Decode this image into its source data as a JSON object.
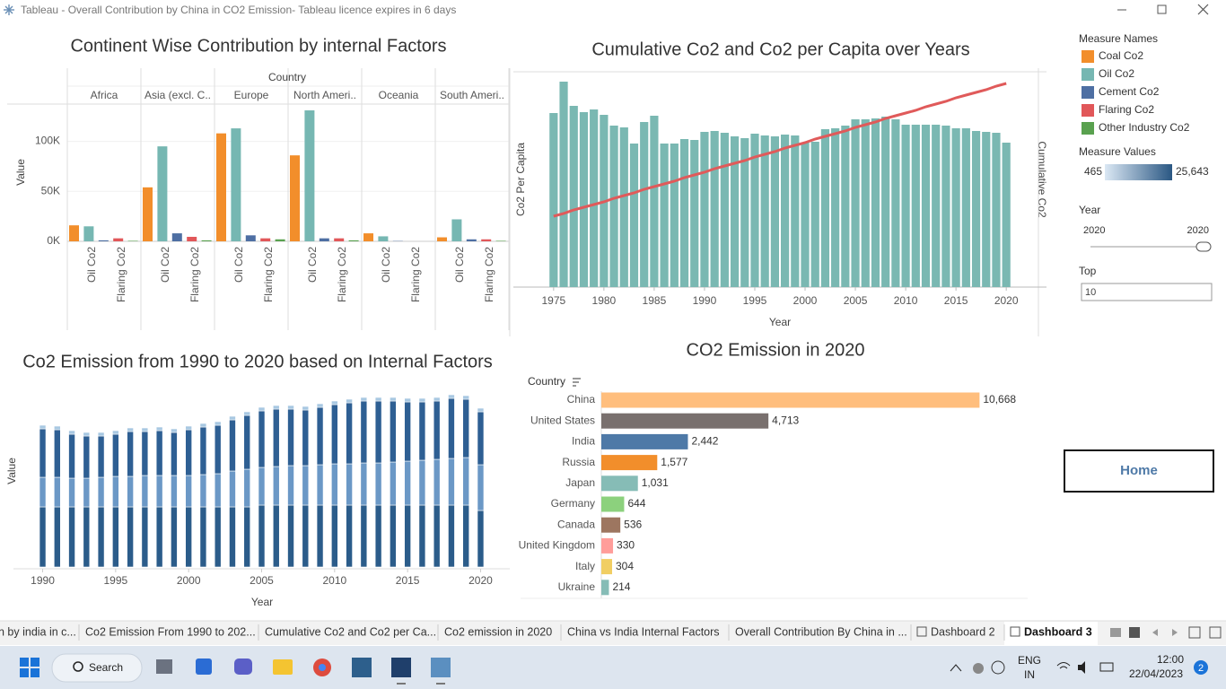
{
  "window": {
    "title": "Tableau - Overall Contribution by China in CO2 Emission- Tableau licence expires in 6 days"
  },
  "chart_data": [
    {
      "type": "grouped",
      "title": "Continent Wise Contribution by internal Factors",
      "column_header": "Country",
      "ylabel": "Value",
      "categories": [
        "Africa",
        "Asia (excl. C..",
        "Europe",
        "North Ameri..",
        "Oceania",
        "South Ameri.."
      ],
      "measure_labels": [
        null,
        "Oil Co2",
        null,
        "Flaring Co2",
        null
      ],
      "legend_title": "Measure Names",
      "series": [
        {
          "name": "Coal Co2",
          "color": "#f28e2b",
          "values": [
            16000,
            54000,
            108000,
            86000,
            8000,
            4000
          ]
        },
        {
          "name": "Oil Co2",
          "color": "#76b7b2",
          "values": [
            15000,
            95000,
            113000,
            131000,
            5000,
            22000
          ]
        },
        {
          "name": "Cement Co2",
          "color": "#4e6fa3",
          "values": [
            1000,
            8000,
            6000,
            3000,
            300,
            2000
          ]
        },
        {
          "name": "Flaring Co2",
          "color": "#e15759",
          "values": [
            3000,
            4500,
            3000,
            3000,
            0,
            2000
          ]
        },
        {
          "name": "Other Industry Co2",
          "color": "#59a14f",
          "values": [
            500,
            1000,
            2000,
            1000,
            0,
            500
          ]
        }
      ],
      "ylim": [
        0,
        140000
      ],
      "yticks": [
        {
          "value": 0,
          "label": "0K"
        },
        {
          "value": 50000,
          "label": "50K"
        },
        {
          "value": 100000,
          "label": "100K"
        }
      ],
      "grid": true
    },
    {
      "type": "combo",
      "title": "Cumulative Co2 and Co2 per Capita over Years",
      "xlabel": "Year",
      "ylabel": "Co2 Per Capita",
      "y2label": "Cumulative Co2",
      "x": [
        1975,
        1976,
        1977,
        1978,
        1979,
        1980,
        1981,
        1982,
        1983,
        1984,
        1985,
        1986,
        1987,
        1988,
        1989,
        1990,
        1991,
        1992,
        1993,
        1994,
        1995,
        1996,
        1997,
        1998,
        1999,
        2000,
        2001,
        2002,
        2003,
        2004,
        2005,
        2006,
        2007,
        2008,
        2009,
        2010,
        2011,
        2012,
        2013,
        2014,
        2015,
        2016,
        2017,
        2018,
        2019,
        2020
      ],
      "xlim": [
        1971,
        2024
      ],
      "xticks": [
        1975,
        1980,
        1985,
        1990,
        1995,
        2000,
        2005,
        2010,
        2015,
        2020
      ],
      "ylim": [
        0,
        240
      ],
      "y2lim": [
        0,
        240
      ],
      "series": [
        {
          "kind": "bar",
          "color": "#7ab8b2",
          "values": [
            194,
            229,
            202,
            195,
            198,
            192,
            180,
            178,
            160,
            184,
            191,
            160,
            160,
            165,
            164,
            173,
            174,
            172,
            168,
            166,
            171,
            169,
            168,
            170,
            169,
            161,
            162,
            176,
            177,
            180,
            187,
            187,
            188,
            190,
            187,
            181,
            181,
            181,
            181,
            180,
            177,
            177,
            174,
            173,
            172,
            161
          ]
        },
        {
          "kind": "line",
          "axis": "y2",
          "color": "#e05a5a",
          "values": [
            79,
            82,
            86,
            89,
            92,
            95,
            99,
            102,
            105,
            109,
            112,
            115,
            118,
            122,
            125,
            128,
            132,
            135,
            138,
            141,
            145,
            148,
            151,
            155,
            158,
            161,
            165,
            168,
            171,
            174,
            178,
            181,
            184,
            188,
            191,
            194,
            197,
            201,
            204,
            207,
            211,
            214,
            217,
            220,
            224,
            227
          ]
        }
      ]
    },
    {
      "type": "stacked",
      "title": "Co2 Emission from 1990 to 2020 based on Internal Factors",
      "xlabel": "Year",
      "ylabel": "Value",
      "x": [
        1990,
        1991,
        1992,
        1993,
        1994,
        1995,
        1996,
        1997,
        1998,
        1999,
        2000,
        2001,
        2002,
        2003,
        2004,
        2005,
        2006,
        2007,
        2008,
        2009,
        2010,
        2011,
        2012,
        2013,
        2014,
        2015,
        2016,
        2017,
        2018,
        2019,
        2020
      ],
      "xlim": [
        1988,
        2022
      ],
      "xticks": [
        1990,
        1995,
        2000,
        2005,
        2010,
        2015,
        2020
      ],
      "ylim": [
        0,
        212
      ],
      "series": [
        {
          "color": "#2b5c8a",
          "values": [
            67,
            67,
            67,
            67,
            67,
            67,
            67,
            67,
            67,
            67,
            67,
            67,
            67,
            67,
            67,
            69,
            69,
            69,
            69,
            69,
            69,
            69,
            69,
            69,
            69,
            69,
            69,
            69,
            69,
            69,
            63
          ]
        },
        {
          "color": "#6b98c6",
          "values": [
            33,
            33,
            32,
            32,
            33,
            34,
            34,
            35,
            35,
            35,
            35,
            36,
            37,
            40,
            42,
            42,
            43,
            44,
            44,
            45,
            46,
            46,
            47,
            47,
            48,
            49,
            50,
            51,
            52,
            53,
            51
          ]
        },
        {
          "color": "#2e5f93",
          "values": [
            54,
            53,
            49,
            47,
            46,
            47,
            50,
            49,
            50,
            48,
            51,
            53,
            54,
            57,
            60,
            63,
            64,
            63,
            62,
            64,
            66,
            68,
            69,
            69,
            68,
            66,
            65,
            65,
            67,
            65,
            59
          ]
        },
        {
          "color": "#a8c8e2",
          "values": [
            4,
            4,
            4,
            4,
            4,
            4,
            4,
            4,
            4,
            4,
            4,
            4,
            4,
            4,
            4,
            4,
            4,
            4,
            4,
            4,
            4,
            4,
            4,
            4,
            4,
            4,
            4,
            4,
            4,
            4,
            4
          ]
        }
      ]
    },
    {
      "type": "barh",
      "title": "CO2 Emission in 2020",
      "column_header": "Country",
      "categories": [
        "China",
        "United States",
        "India",
        "Russia",
        "Japan",
        "Germany",
        "Canada",
        "United Kingdom",
        "Italy",
        "Ukraine"
      ],
      "values": [
        10668,
        4713,
        2442,
        1577,
        1031,
        644,
        536,
        330,
        304,
        214
      ],
      "value_labels": [
        "10,668",
        "4,713",
        "2,442",
        "1,577",
        "1,031",
        "644",
        "536",
        "330",
        "304",
        "214"
      ],
      "colors": [
        "#ffbe7d",
        "#79706e",
        "#4e79a7",
        "#f28e2b",
        "#86bcb6",
        "#8cd17d",
        "#9d7660",
        "#ff9d9a",
        "#f1ce63",
        "#86bcb6"
      ],
      "xlim": [
        0,
        12000
      ]
    }
  ],
  "filters": {
    "measure_values": {
      "title": "Measure Values",
      "min": 465,
      "max": {
        "value": 25643,
        "label": "25,643"
      }
    },
    "year": {
      "title": "Year",
      "from": 2020,
      "to": 2020
    },
    "top": {
      "title": "Top",
      "value": 10
    }
  },
  "home_button": "Home",
  "tabs": [
    {
      "label": "n by india in c..."
    },
    {
      "label": "Co2 Emission From 1990 to 202..."
    },
    {
      "label": "Cumulative Co2 and Co2 per Ca..."
    },
    {
      "label": "Co2 emission in 2020"
    },
    {
      "label": "China vs India Internal Factors"
    },
    {
      "label": "Overall Contribution By China in ..."
    },
    {
      "label": "Dashboard 2"
    },
    {
      "label": "Dashboard 3",
      "active": true
    }
  ],
  "taskbar": {
    "search": "Search",
    "language": "ENG",
    "region": "IN",
    "time": "12:00",
    "date": "22/04/2023",
    "notifications": 2
  }
}
